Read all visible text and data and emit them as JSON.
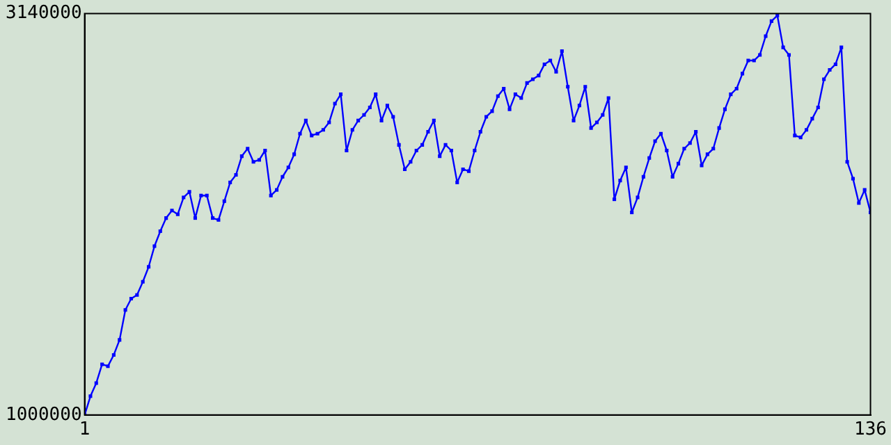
{
  "chart_data": {
    "type": "line",
    "x": [
      1,
      2,
      3,
      4,
      5,
      6,
      7,
      8,
      9,
      10,
      11,
      12,
      13,
      14,
      15,
      16,
      17,
      18,
      19,
      20,
      21,
      22,
      23,
      24,
      25,
      26,
      27,
      28,
      29,
      30,
      31,
      32,
      33,
      34,
      35,
      36,
      37,
      38,
      39,
      40,
      41,
      42,
      43,
      44,
      45,
      46,
      47,
      48,
      49,
      50,
      51,
      52,
      53,
      54,
      55,
      56,
      57,
      58,
      59,
      60,
      61,
      62,
      63,
      64,
      65,
      66,
      67,
      68,
      69,
      70,
      71,
      72,
      73,
      74,
      75,
      76,
      77,
      78,
      79,
      80,
      81,
      82,
      83,
      84,
      85,
      86,
      87,
      88,
      89,
      90,
      91,
      92,
      93,
      94,
      95,
      96,
      97,
      98,
      99,
      100,
      101,
      102,
      103,
      104,
      105,
      106,
      107,
      108,
      109,
      110,
      111,
      112,
      113,
      114,
      115,
      116,
      117,
      118,
      119,
      120,
      121,
      122,
      123,
      124,
      125,
      126,
      127,
      128,
      129,
      130,
      131,
      132,
      133,
      134,
      135,
      136
    ],
    "series": [
      {
        "color": "#0000ff",
        "values": [
          1000000,
          1100000,
          1170000,
          1270000,
          1260000,
          1320000,
          1400000,
          1560000,
          1620000,
          1640000,
          1710000,
          1790000,
          1900000,
          1980000,
          2050000,
          2090000,
          2070000,
          2160000,
          2190000,
          2050000,
          2170000,
          2170000,
          2050000,
          2040000,
          2140000,
          2240000,
          2280000,
          2380000,
          2420000,
          2350000,
          2360000,
          2410000,
          2170000,
          2200000,
          2270000,
          2320000,
          2390000,
          2500000,
          2570000,
          2490000,
          2500000,
          2520000,
          2560000,
          2660000,
          2710000,
          2410000,
          2520000,
          2570000,
          2600000,
          2640000,
          2710000,
          2570000,
          2650000,
          2590000,
          2440000,
          2310000,
          2350000,
          2410000,
          2440000,
          2510000,
          2570000,
          2380000,
          2440000,
          2410000,
          2240000,
          2310000,
          2300000,
          2410000,
          2510000,
          2590000,
          2620000,
          2700000,
          2740000,
          2630000,
          2710000,
          2690000,
          2770000,
          2790000,
          2810000,
          2870000,
          2890000,
          2830000,
          2940000,
          2750000,
          2570000,
          2650000,
          2750000,
          2530000,
          2560000,
          2600000,
          2690000,
          2150000,
          2250000,
          2320000,
          2080000,
          2160000,
          2270000,
          2370000,
          2460000,
          2500000,
          2410000,
          2270000,
          2340000,
          2420000,
          2450000,
          2510000,
          2330000,
          2390000,
          2420000,
          2530000,
          2630000,
          2710000,
          2740000,
          2820000,
          2890000,
          2890000,
          2920000,
          3020000,
          3100000,
          3130000,
          2960000,
          2920000,
          2490000,
          2480000,
          2520000,
          2580000,
          2640000,
          2790000,
          2840000,
          2870000,
          2960000,
          2350000,
          2260000,
          2130000,
          2200000,
          2080000
        ]
      }
    ],
    "xlim": [
      1,
      136
    ],
    "xticks": [
      1,
      136
    ],
    "ylim": [
      1000000,
      3140000
    ],
    "yticks": [
      1000000,
      3140000
    ],
    "grid": false,
    "legend": false,
    "marker": "square",
    "line_style": "solid"
  }
}
